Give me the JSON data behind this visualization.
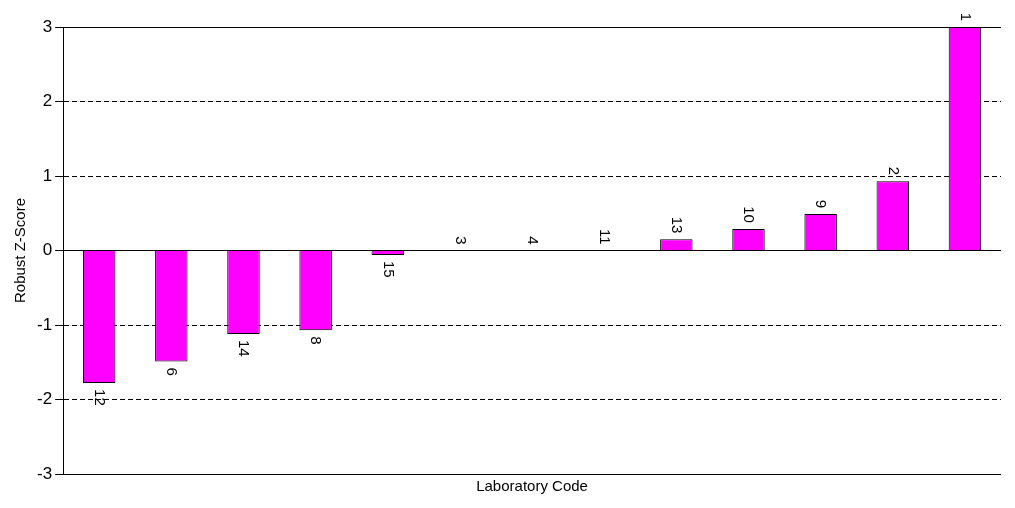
{
  "chart_data": {
    "type": "bar",
    "xlabel": "Laboratory Code",
    "ylabel": "Robust Z-Score",
    "categories": [
      "12",
      "6",
      "14",
      "8",
      "15",
      "3",
      "4",
      "11",
      "13",
      "10",
      "9",
      "2",
      "1"
    ],
    "values": [
      -1.78,
      -1.49,
      -1.12,
      -1.07,
      -0.06,
      0,
      0,
      0,
      0.15,
      0.29,
      0.49,
      0.93,
      3.0
    ],
    "color": "#ff00ff",
    "ylim": [
      -3,
      3
    ],
    "yticks": [
      -3,
      -2,
      -1,
      0,
      1,
      2,
      3
    ],
    "grid": "y",
    "legend": false
  }
}
